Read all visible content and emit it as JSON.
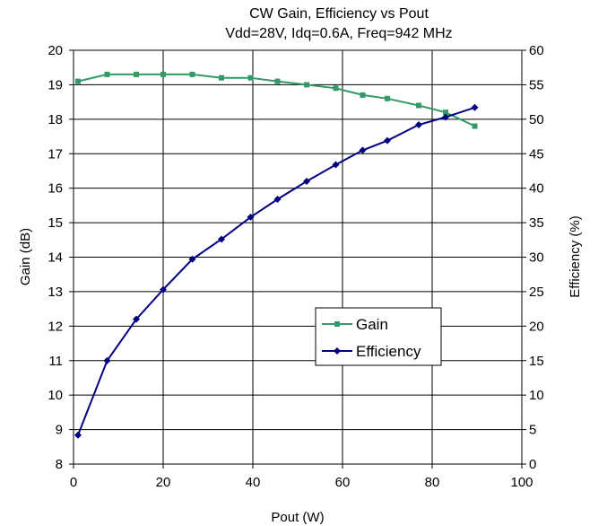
{
  "chart_data": {
    "type": "line",
    "title": "CW Gain, Efficiency vs Pout",
    "subtitle": "Vdd=28V, Idq=0.6A, Freq=942 MHz",
    "xlabel": "Pout (W)",
    "ylabel": "Gain (dB)",
    "y2label": "Efficiency (%)",
    "xlim": [
      0,
      100
    ],
    "ylim": [
      8,
      20
    ],
    "y2lim": [
      0,
      60
    ],
    "x_ticks": [
      0,
      20,
      40,
      60,
      80,
      100
    ],
    "y_ticks": [
      8,
      9,
      10,
      11,
      12,
      13,
      14,
      15,
      16,
      17,
      18,
      19,
      20
    ],
    "y2_ticks": [
      0,
      5,
      10,
      15,
      20,
      25,
      30,
      35,
      40,
      45,
      50,
      55,
      60
    ],
    "grid": "horizontal and vertical major gridlines",
    "legend_position": "center-right",
    "series": [
      {
        "name": "Gain",
        "axis": "left",
        "color": "#339966",
        "marker": "square",
        "x": [
          1,
          7.5,
          14,
          20,
          26.5,
          33,
          39.5,
          45.5,
          52,
          58.5,
          64.5,
          70,
          77,
          83,
          89.5
        ],
        "values": [
          19.1,
          19.3,
          19.3,
          19.3,
          19.3,
          19.2,
          19.2,
          19.1,
          19.0,
          18.9,
          18.7,
          18.6,
          18.4,
          18.2,
          17.8
        ]
      },
      {
        "name": "Efficiency",
        "axis": "right",
        "color": "#000080",
        "marker": "diamond",
        "x": [
          1,
          7.5,
          14,
          20,
          26.5,
          33,
          39.5,
          45.5,
          52,
          58.5,
          64.5,
          70,
          77,
          83,
          89.5
        ],
        "values": [
          4.2,
          15.0,
          21.0,
          25.3,
          29.7,
          32.6,
          35.8,
          38.4,
          41.0,
          43.4,
          45.5,
          46.9,
          49.2,
          50.3,
          51.7
        ]
      }
    ]
  }
}
